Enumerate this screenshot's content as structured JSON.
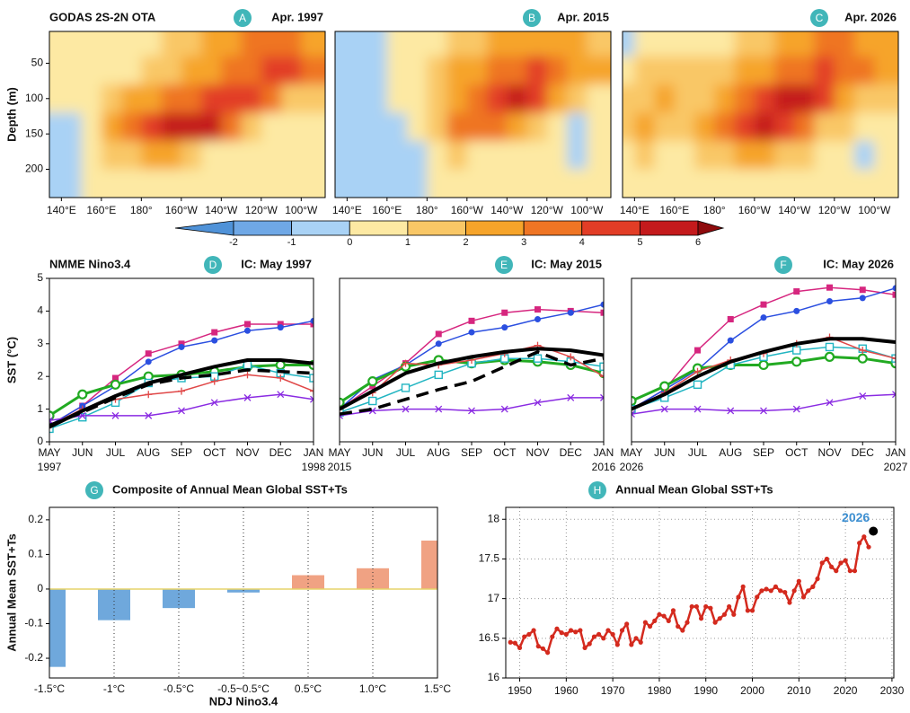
{
  "colorbar": {
    "levels": [
      -2,
      -1,
      0,
      1,
      2,
      3,
      4,
      5,
      6
    ],
    "colors": [
      "#4f92d8",
      "#6fa8e6",
      "#a9d2f5",
      "#fde9a3",
      "#f9c766",
      "#f6a42a",
      "#ef7524",
      "#e23d26",
      "#c41a1c",
      "#8e0a0c"
    ]
  },
  "chart_data": [
    {
      "type": "heatmap",
      "title": "GODAS 2S-2N OTA",
      "label": "A",
      "subtitle": "Apr. 1997",
      "ylabel": "Depth (m)",
      "x": [
        135,
        145,
        155,
        165,
        175,
        185,
        195,
        205,
        215,
        225,
        235,
        245,
        255,
        265
      ],
      "y": [
        20,
        60,
        100,
        140,
        180,
        220
      ],
      "values": [
        [
          0.3,
          0.5,
          0.5,
          0.5,
          0.5,
          0.7,
          1,
          1.5,
          2,
          2.5,
          3,
          3.5,
          3,
          2.5
        ],
        [
          0.5,
          0.3,
          0.5,
          0.6,
          0.8,
          1,
          1.5,
          2,
          2.5,
          3,
          3.5,
          4,
          4,
          3.5
        ],
        [
          0.3,
          0.5,
          0.8,
          1.5,
          2,
          2.5,
          3,
          3.5,
          4,
          4.5,
          4.5,
          3,
          1.5,
          1
        ],
        [
          -0.5,
          -0.3,
          0.8,
          2,
          3,
          4,
          5,
          5.5,
          5,
          3,
          1,
          0.5,
          0.5,
          0.5
        ],
        [
          -0.5,
          -0.5,
          0,
          1,
          1.5,
          2,
          2,
          1.5,
          0.8,
          0.5,
          0.3,
          0.3,
          0.3,
          0.3
        ],
        [
          -0.5,
          -0.3,
          0,
          0.3,
          0.5,
          0.5,
          0.5,
          0.5,
          0.3,
          0.3,
          0.3,
          0.3,
          0.3,
          0.3
        ]
      ],
      "xlim": [
        134,
        272
      ],
      "ylim": [
        5,
        240
      ],
      "invert_y": true,
      "xticks": [
        {
          "value": 140,
          "label": "140°E"
        },
        {
          "value": 160,
          "label": "160°E"
        },
        {
          "value": 180,
          "label": "180°"
        },
        {
          "value": 200,
          "label": "160°W"
        },
        {
          "value": 220,
          "label": "140°W"
        },
        {
          "value": 240,
          "label": "120°W"
        },
        {
          "value": 260,
          "label": "100°W"
        }
      ],
      "yticks": [
        50,
        100,
        150,
        200
      ]
    },
    {
      "type": "heatmap",
      "label": "B",
      "subtitle": "Apr. 2015",
      "x": [
        135,
        145,
        155,
        165,
        175,
        185,
        195,
        205,
        215,
        225,
        235,
        245,
        255,
        265
      ],
      "y": [
        20,
        60,
        100,
        140,
        180,
        220
      ],
      "values": [
        [
          -0.5,
          -0.5,
          -0.5,
          0.3,
          0.5,
          0.8,
          1.2,
          1.8,
          2,
          2.2,
          2.5,
          2.5,
          2,
          1.5
        ],
        [
          -0.5,
          -0.5,
          -0.3,
          0.3,
          0.8,
          1.5,
          2,
          2.5,
          3,
          3.5,
          4,
          3.5,
          2.5,
          2
        ],
        [
          -0.5,
          -0.5,
          -0.3,
          0,
          0.5,
          1.5,
          2.5,
          3.5,
          4.5,
          5.5,
          4,
          2,
          1,
          0.5
        ],
        [
          -0.5,
          -0.5,
          -0.5,
          -0.3,
          0.3,
          1.5,
          3,
          3.5,
          3,
          2,
          1,
          0.5,
          -0.3,
          0.3
        ],
        [
          -0.5,
          -0.8,
          -0.5,
          -0.5,
          -0.3,
          0.5,
          1,
          0.8,
          0.5,
          0.5,
          0.3,
          0.3,
          -0.3,
          0.3
        ],
        [
          -0.5,
          -0.5,
          -0.5,
          -0.5,
          -0.3,
          0.3,
          0.5,
          0.5,
          0.3,
          0.3,
          0.3,
          0.3,
          0.3,
          0.3
        ]
      ],
      "xlim": [
        134,
        272
      ],
      "ylim": [
        5,
        240
      ],
      "invert_y": true,
      "xticks": [
        {
          "value": 140,
          "label": "140°E"
        },
        {
          "value": 160,
          "label": "160°E"
        },
        {
          "value": 180,
          "label": "180°"
        },
        {
          "value": 200,
          "label": "160°W"
        },
        {
          "value": 220,
          "label": "140°W"
        },
        {
          "value": 240,
          "label": "120°W"
        },
        {
          "value": 260,
          "label": "100°W"
        }
      ]
    },
    {
      "type": "heatmap",
      "label": "C",
      "subtitle": "Apr. 2026",
      "x": [
        135,
        145,
        155,
        165,
        175,
        185,
        195,
        205,
        215,
        225,
        235,
        245,
        255,
        265
      ],
      "y": [
        20,
        60,
        100,
        140,
        180,
        220
      ],
      "values": [
        [
          -0.3,
          0.5,
          0.5,
          0.5,
          0.5,
          0.8,
          1,
          1.5,
          2,
          2.5,
          3,
          3,
          2.5,
          2
        ],
        [
          0.5,
          1,
          1,
          1,
          1,
          1.5,
          2,
          2.5,
          3,
          3.5,
          4,
          3.5,
          3,
          2.5
        ],
        [
          1,
          1.5,
          2,
          1.5,
          1.5,
          2,
          3,
          4,
          5,
          5.5,
          4,
          2.5,
          1.5,
          1
        ],
        [
          1,
          2.5,
          1.5,
          1,
          2,
          3,
          4,
          5,
          4.5,
          3,
          1.5,
          1,
          0.5,
          0.5
        ],
        [
          0.5,
          1,
          0.8,
          0.5,
          1,
          1.5,
          2,
          2,
          1.5,
          1,
          0.5,
          0.5,
          -0.3,
          0.5
        ],
        [
          0.3,
          0.5,
          0.5,
          0.5,
          0.5,
          0.8,
          0.8,
          0.8,
          0.5,
          0.5,
          0.3,
          0.3,
          0.3,
          0.3
        ]
      ],
      "xlim": [
        134,
        272
      ],
      "ylim": [
        5,
        240
      ],
      "invert_y": true,
      "xticks": [
        {
          "value": 140,
          "label": "140°E"
        },
        {
          "value": 160,
          "label": "160°E"
        },
        {
          "value": 180,
          "label": "180°"
        },
        {
          "value": 200,
          "label": "160°W"
        },
        {
          "value": 220,
          "label": "140°W"
        },
        {
          "value": 240,
          "label": "120°W"
        },
        {
          "value": 260,
          "label": "100°W"
        }
      ]
    },
    {
      "type": "line",
      "title": "NMME Nino3.4",
      "label": "D",
      "subtitle": "IC: May 1997",
      "ylabel": "SST (°C)",
      "categories": [
        "MAY",
        "JUN",
        "JUL",
        "AUG",
        "SEP",
        "OCT",
        "NOV",
        "DEC",
        "JAN"
      ],
      "year_labels": [
        "1997",
        "1998"
      ],
      "ylim": [
        0,
        5
      ],
      "yticks": [
        0,
        1,
        2,
        3,
        4,
        5
      ],
      "series": [
        {
          "color": "#d6267f",
          "marker": "square",
          "width": 1.5,
          "values": [
            0.5,
            1.1,
            1.95,
            2.7,
            3.0,
            3.35,
            3.6,
            3.6,
            3.6
          ]
        },
        {
          "color": "#2b4fe0",
          "marker": "circle",
          "width": 1.5,
          "values": [
            0.5,
            1.1,
            1.7,
            2.45,
            2.9,
            3.1,
            3.4,
            3.5,
            3.7
          ]
        },
        {
          "color": "#22aa22",
          "marker": "open-circle",
          "width": 3,
          "values": [
            0.8,
            1.45,
            1.75,
            2.0,
            2.05,
            2.15,
            2.3,
            2.35,
            2.35
          ]
        },
        {
          "color": "#22b5c2",
          "marker": "open-square",
          "width": 1.5,
          "values": [
            0.4,
            0.75,
            1.2,
            1.8,
            1.95,
            2.0,
            2.35,
            2.1,
            1.95
          ]
        },
        {
          "color": "#e04848",
          "marker": "plus",
          "width": 1.5,
          "values": [
            0.5,
            1.0,
            1.3,
            1.45,
            1.55,
            1.85,
            2.05,
            1.95,
            1.55
          ]
        },
        {
          "color": "#8a2be2",
          "marker": "x",
          "width": 1.5,
          "values": [
            0.65,
            0.8,
            0.8,
            0.8,
            0.95,
            1.2,
            1.35,
            1.45,
            1.3
          ]
        },
        {
          "color": "#000000",
          "marker": "none",
          "width": 4,
          "values": [
            0.45,
            0.95,
            1.4,
            1.8,
            2.05,
            2.3,
            2.5,
            2.5,
            2.4
          ]
        },
        {
          "color": "#000000",
          "marker": "none",
          "width": 3.5,
          "dash": true,
          "values": [
            0.5,
            0.9,
            1.35,
            1.75,
            1.95,
            2.05,
            2.2,
            2.15,
            2.1
          ]
        }
      ]
    },
    {
      "type": "line",
      "label": "E",
      "subtitle": "IC: May 2015",
      "categories": [
        "MAY",
        "JUN",
        "JUL",
        "AUG",
        "SEP",
        "OCT",
        "NOV",
        "DEC",
        "JAN"
      ],
      "year_labels": [
        "2015",
        "2016"
      ],
      "ylim": [
        0,
        5
      ],
      "series": [
        {
          "color": "#d6267f",
          "marker": "square",
          "width": 1.5,
          "values": [
            1.0,
            1.7,
            2.4,
            3.3,
            3.7,
            3.95,
            4.05,
            4.0,
            3.95
          ]
        },
        {
          "color": "#2b4fe0",
          "marker": "circle",
          "width": 1.5,
          "values": [
            1.0,
            1.9,
            2.35,
            3.0,
            3.35,
            3.5,
            3.75,
            3.95,
            4.2
          ]
        },
        {
          "color": "#22aa22",
          "marker": "open-circle",
          "width": 3,
          "values": [
            1.2,
            1.85,
            2.3,
            2.5,
            2.4,
            2.5,
            2.45,
            2.35,
            2.1
          ]
        },
        {
          "color": "#22b5c2",
          "marker": "open-square",
          "width": 1.5,
          "values": [
            0.9,
            1.25,
            1.65,
            2.05,
            2.4,
            2.55,
            2.55,
            2.45,
            2.3
          ]
        },
        {
          "color": "#e04848",
          "marker": "plus",
          "width": 1.5,
          "values": [
            1.0,
            1.5,
            2.4,
            2.35,
            2.5,
            2.7,
            2.95,
            2.6,
            2.0
          ]
        },
        {
          "color": "#8a2be2",
          "marker": "x",
          "width": 1.5,
          "values": [
            0.8,
            0.95,
            1.0,
            1.0,
            0.95,
            1.0,
            1.2,
            1.35,
            1.35
          ]
        },
        {
          "color": "#000000",
          "marker": "none",
          "width": 4,
          "values": [
            1.0,
            1.55,
            2.1,
            2.4,
            2.6,
            2.75,
            2.85,
            2.8,
            2.65
          ]
        },
        {
          "color": "#000000",
          "marker": "none",
          "width": 3.5,
          "dash": true,
          "values": [
            0.85,
            1.0,
            1.3,
            1.6,
            1.85,
            2.3,
            2.75,
            2.35,
            2.55
          ]
        }
      ]
    },
    {
      "type": "line",
      "label": "F",
      "subtitle": "IC: May 2026",
      "categories": [
        "MAY",
        "JUN",
        "JUL",
        "AUG",
        "SEP",
        "OCT",
        "NOV",
        "DEC",
        "JAN"
      ],
      "year_labels": [
        "2026",
        "2027"
      ],
      "ylim": [
        0,
        5
      ],
      "series": [
        {
          "color": "#d6267f",
          "marker": "square",
          "width": 1.5,
          "values": [
            1.0,
            1.6,
            2.8,
            3.75,
            4.2,
            4.6,
            4.72,
            4.65,
            4.5
          ]
        },
        {
          "color": "#2b4fe0",
          "marker": "circle",
          "width": 1.5,
          "values": [
            1.0,
            1.6,
            2.2,
            3.1,
            3.8,
            4.0,
            4.3,
            4.4,
            4.7
          ]
        },
        {
          "color": "#22aa22",
          "marker": "open-circle",
          "width": 3,
          "values": [
            1.25,
            1.7,
            2.25,
            2.35,
            2.35,
            2.45,
            2.6,
            2.55,
            2.4
          ]
        },
        {
          "color": "#22b5c2",
          "marker": "open-square",
          "width": 1.5,
          "values": [
            1.0,
            1.35,
            1.75,
            2.35,
            2.6,
            2.8,
            2.9,
            2.85,
            2.55
          ]
        },
        {
          "color": "#e04848",
          "marker": "plus",
          "width": 1.5,
          "values": [
            1.0,
            1.5,
            2.15,
            2.5,
            2.7,
            3.0,
            3.2,
            2.8,
            2.55
          ]
        },
        {
          "color": "#8a2be2",
          "marker": "x",
          "width": 1.5,
          "values": [
            0.85,
            1.0,
            1.0,
            0.95,
            0.95,
            1.0,
            1.2,
            1.4,
            1.45
          ]
        },
        {
          "color": "#000000",
          "marker": "none",
          "width": 4,
          "values": [
            1.0,
            1.45,
            2.0,
            2.45,
            2.75,
            3.0,
            3.15,
            3.15,
            3.05
          ]
        }
      ]
    },
    {
      "type": "bar",
      "label": "G",
      "title": "Composite of Annual Mean Global SST+Ts",
      "xlabel": "NDJ Nino3.4",
      "ylabel": "Annual Mean SST+Ts",
      "categories": [
        "-1.5°C",
        "-1°C",
        "-0.5°C",
        "-0.5~0.5°C",
        "0.5°C",
        "1.0°C",
        "1.5°C"
      ],
      "values": [
        -0.225,
        -0.09,
        -0.055,
        -0.01,
        0.04,
        0.06,
        0.14
      ],
      "negative_color": "#6fa8dc",
      "positive_color": "#f0a283",
      "ylim": [
        -0.257,
        0.236
      ],
      "yticks": [
        -0.2,
        -0.1,
        0,
        0.1,
        0.2
      ],
      "grid": true
    },
    {
      "type": "line",
      "label": "H",
      "title": "Annual Mean Global SST+Ts",
      "color": "#d42a1e",
      "x": [
        1948,
        1949,
        1950,
        1951,
        1952,
        1953,
        1954,
        1955,
        1956,
        1957,
        1958,
        1959,
        1960,
        1961,
        1962,
        1963,
        1964,
        1965,
        1966,
        1967,
        1968,
        1969,
        1970,
        1971,
        1972,
        1973,
        1974,
        1975,
        1976,
        1977,
        1978,
        1979,
        1980,
        1981,
        1982,
        1983,
        1984,
        1985,
        1986,
        1987,
        1988,
        1989,
        1990,
        1991,
        1992,
        1993,
        1994,
        1995,
        1996,
        1997,
        1998,
        1999,
        2000,
        2001,
        2002,
        2003,
        2004,
        2005,
        2006,
        2007,
        2008,
        2009,
        2010,
        2011,
        2012,
        2013,
        2014,
        2015,
        2016,
        2017,
        2018,
        2019,
        2020,
        2021,
        2022,
        2023,
        2024,
        2025
      ],
      "values": [
        16.45,
        16.44,
        16.38,
        16.52,
        16.55,
        16.6,
        16.4,
        16.37,
        16.32,
        16.52,
        16.62,
        16.57,
        16.55,
        16.6,
        16.58,
        16.6,
        16.38,
        16.43,
        16.52,
        16.55,
        16.5,
        16.6,
        16.55,
        16.42,
        16.6,
        16.68,
        16.42,
        16.5,
        16.45,
        16.7,
        16.65,
        16.72,
        16.8,
        16.78,
        16.72,
        16.85,
        16.65,
        16.6,
        16.7,
        16.9,
        16.9,
        16.75,
        16.9,
        16.88,
        16.7,
        16.75,
        16.8,
        16.9,
        16.8,
        17.02,
        17.15,
        16.85,
        16.85,
        17.02,
        17.1,
        17.12,
        17.1,
        17.15,
        17.1,
        17.08,
        16.95,
        17.1,
        17.22,
        17.02,
        17.1,
        17.15,
        17.25,
        17.45,
        17.5,
        17.4,
        17.35,
        17.45,
        17.48,
        17.35,
        17.35,
        17.7,
        17.78,
        17.65
      ],
      "highlight": {
        "x": 2026,
        "value": 17.85,
        "color": "#000000",
        "label_color": "#3d8fd1"
      },
      "xlim": [
        1947,
        2030.4
      ],
      "ylim": [
        16,
        18.15
      ],
      "xticks": [
        1950,
        1960,
        1970,
        1980,
        1990,
        2000,
        2010,
        2020,
        2030
      ],
      "yticks": [
        16,
        16.5,
        17,
        17.5,
        18
      ],
      "grid": true
    }
  ]
}
